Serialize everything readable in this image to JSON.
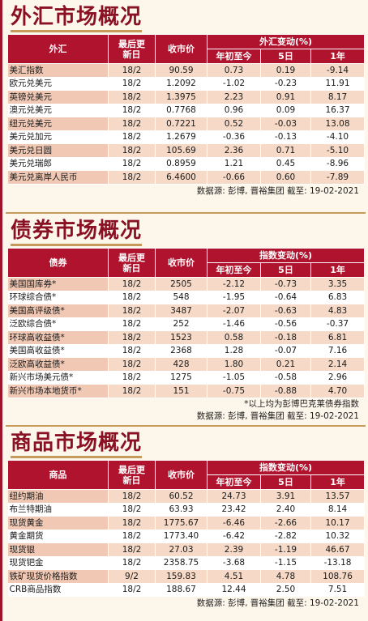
{
  "fx": {
    "title": "外汇市场概况",
    "headers": {
      "name": "外汇",
      "date": "最后更新日",
      "close": "收市价",
      "change_group": "外汇变动(%)",
      "ytd": "年初至今",
      "d5": "5日",
      "y1": "1年"
    },
    "rows": [
      {
        "name": "美汇指数",
        "date": "18/2",
        "close": "90.59",
        "ytd": "0.73",
        "d5": "0.19",
        "y1": "-9.14"
      },
      {
        "name": "欧元兑美元",
        "date": "18/2",
        "close": "1.2092",
        "ytd": "-1.02",
        "d5": "-0.23",
        "y1": "11.91"
      },
      {
        "name": "英镑兑美元",
        "date": "18/2",
        "close": "1.3975",
        "ytd": "2.23",
        "d5": "0.91",
        "y1": "8.17"
      },
      {
        "name": "澳元兑美元",
        "date": "18/2",
        "close": "0.7768",
        "ytd": "0.96",
        "d5": "0.09",
        "y1": "16.37"
      },
      {
        "name": "纽元兑美元",
        "date": "18/2",
        "close": "0.7221",
        "ytd": "0.52",
        "d5": "-0.03",
        "y1": "13.08"
      },
      {
        "name": "美元兑加元",
        "date": "18/2",
        "close": "1.2679",
        "ytd": "-0.36",
        "d5": "-0.13",
        "y1": "-4.10"
      },
      {
        "name": "美元兑日圆",
        "date": "18/2",
        "close": "105.69",
        "ytd": "2.36",
        "d5": "0.71",
        "y1": "-5.10"
      },
      {
        "name": "美元兑瑞郎",
        "date": "18/2",
        "close": "0.8959",
        "ytd": "1.21",
        "d5": "0.45",
        "y1": "-8.96"
      },
      {
        "name": "美元兑离岸人民币",
        "date": "18/2",
        "close": "6.4600",
        "ytd": "-0.66",
        "d5": "0.60",
        "y1": "-7.89"
      }
    ],
    "source": "数据源: 彭博, 晋裕集团 截至: 19-02-2021"
  },
  "bonds": {
    "title": "债券市场概况",
    "headers": {
      "name": "债券",
      "date": "最后更新日",
      "close": "收市价",
      "change_group": "指数变动(%)",
      "ytd": "年初至今",
      "d5": "5日",
      "y1": "1年"
    },
    "rows": [
      {
        "name": "美国国库券*",
        "date": "18/2",
        "close": "2505",
        "ytd": "-2.12",
        "d5": "-0.73",
        "y1": "3.35"
      },
      {
        "name": "环球综合债*",
        "date": "18/2",
        "close": "548",
        "ytd": "-1.95",
        "d5": "-0.64",
        "y1": "6.83"
      },
      {
        "name": "美国高评级债*",
        "date": "18/2",
        "close": "3487",
        "ytd": "-2.07",
        "d5": "-0.63",
        "y1": "4.83"
      },
      {
        "name": "泛欧综合债*",
        "date": "18/2",
        "close": "252",
        "ytd": "-1.46",
        "d5": "-0.56",
        "y1": "-0.37"
      },
      {
        "name": "环球高收益债*",
        "date": "18/2",
        "close": "1523",
        "ytd": "0.58",
        "d5": "-0.18",
        "y1": "6.81"
      },
      {
        "name": "美国高收益债*",
        "date": "18/2",
        "close": "2368",
        "ytd": "1.28",
        "d5": "-0.07",
        "y1": "7.16"
      },
      {
        "name": "泛欧高收益债*",
        "date": "18/2",
        "close": "428",
        "ytd": "1.80",
        "d5": "0.21",
        "y1": "2.14"
      },
      {
        "name": "新兴市场美元债*",
        "date": "18/2",
        "close": "1275",
        "ytd": "-1.05",
        "d5": "-0.58",
        "y1": "2.96"
      },
      {
        "name": "新兴市场本地货币*",
        "date": "18/2",
        "close": "151",
        "ytd": "-0.75",
        "d5": "-0.88",
        "y1": "4.70"
      }
    ],
    "note": "*以上均为彭博巴克莱债券指数",
    "source": "数据源: 彭博, 晋裕集团 截至: 19-02-2021"
  },
  "commodities": {
    "title": "商品市场概况",
    "headers": {
      "name": "商品",
      "date": "最后更新日",
      "close": "收市价",
      "change_group": "指数变动(%)",
      "ytd": "年初至今",
      "d5": "5日",
      "y1": "1年"
    },
    "rows": [
      {
        "name": "纽约期油",
        "date": "18/2",
        "close": "60.52",
        "ytd": "24.73",
        "d5": "3.91",
        "y1": "13.57"
      },
      {
        "name": "布兰特期油",
        "date": "18/2",
        "close": "63.93",
        "ytd": "23.42",
        "d5": "2.40",
        "y1": "8.14"
      },
      {
        "name": "现货黄金",
        "date": "18/2",
        "close": "1775.67",
        "ytd": "-6.46",
        "d5": "-2.66",
        "y1": "10.17"
      },
      {
        "name": "黄金期货",
        "date": "18/2",
        "close": "1773.40",
        "ytd": "-6.42",
        "d5": "-2.82",
        "y1": "10.32"
      },
      {
        "name": "现货银",
        "date": "18/2",
        "close": "27.03",
        "ytd": "2.39",
        "d5": "-1.19",
        "y1": "46.67"
      },
      {
        "name": "现货钯金",
        "date": "18/2",
        "close": "2358.75",
        "ytd": "-3.68",
        "d5": "-1.15",
        "y1": "-13.18"
      },
      {
        "name": "铁矿现货价格指数",
        "date": "9/2",
        "close": "159.83",
        "ytd": "4.51",
        "d5": "4.78",
        "y1": "108.76"
      },
      {
        "name": "CRB商品指数",
        "date": "18/2",
        "close": "188.67",
        "ytd": "12.44",
        "d5": "2.50",
        "y1": "7.51"
      }
    ],
    "source": "数据源: 彭博, 晋裕集团 截至: 19-02-2021"
  }
}
